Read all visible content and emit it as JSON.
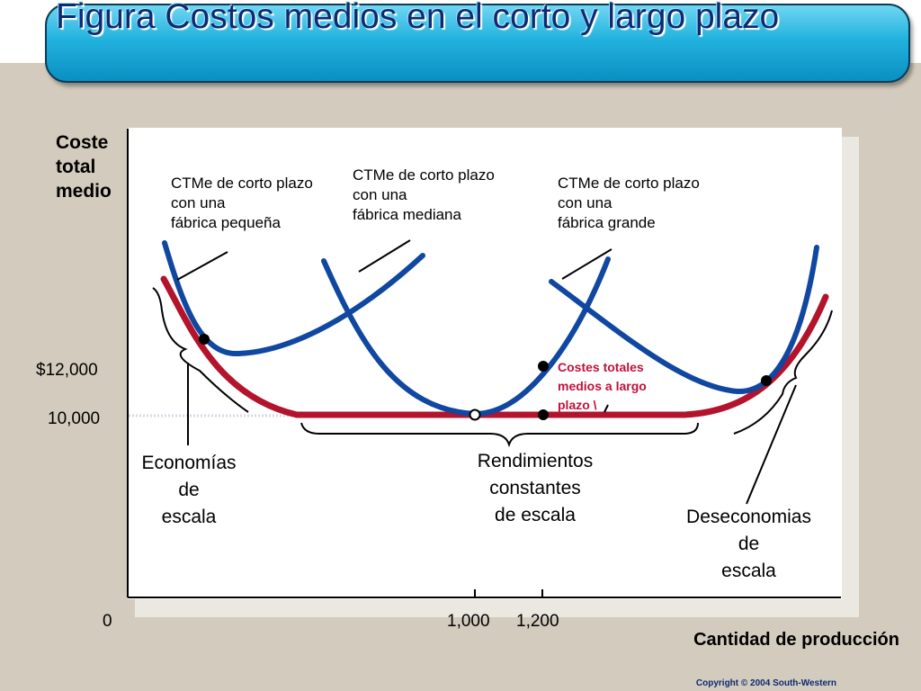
{
  "title": "Figura Costos medios en el corto y largo plazo",
  "copyright": "Copyright © 2004  South-Western",
  "chart_data": {
    "type": "line",
    "title": "Figura Costos medios en el corto y largo plazo",
    "ylabel": "Coste total medio",
    "xlabel": "Cantidad de producción",
    "y_ticks": [
      "$12,000",
      "10,000"
    ],
    "origin_label": "0",
    "x_ticks": [
      "1,000",
      "1,200"
    ],
    "curve_labels": {
      "small": "CTMe de corto plazo\ncon una\nfábrica pequeña",
      "medium": "CTMe de corto plazo\ncon una\nfábrica mediana",
      "large": "CTMe de corto plazo\ncon una\nfábrica grande",
      "long_run": "Costes totales\nmedios a largo\nplazo \\"
    },
    "regions": {
      "economies": "Economías\nde\nescala",
      "constant": "Rendimientos\nconstantes\nde escala",
      "diseconomies": "Deseconomias\nde\nescala"
    },
    "colors": {
      "short_run": "#0f47a1",
      "long_run": "#b3132b",
      "long_run_label": "#c0123a"
    },
    "grid": false
  }
}
